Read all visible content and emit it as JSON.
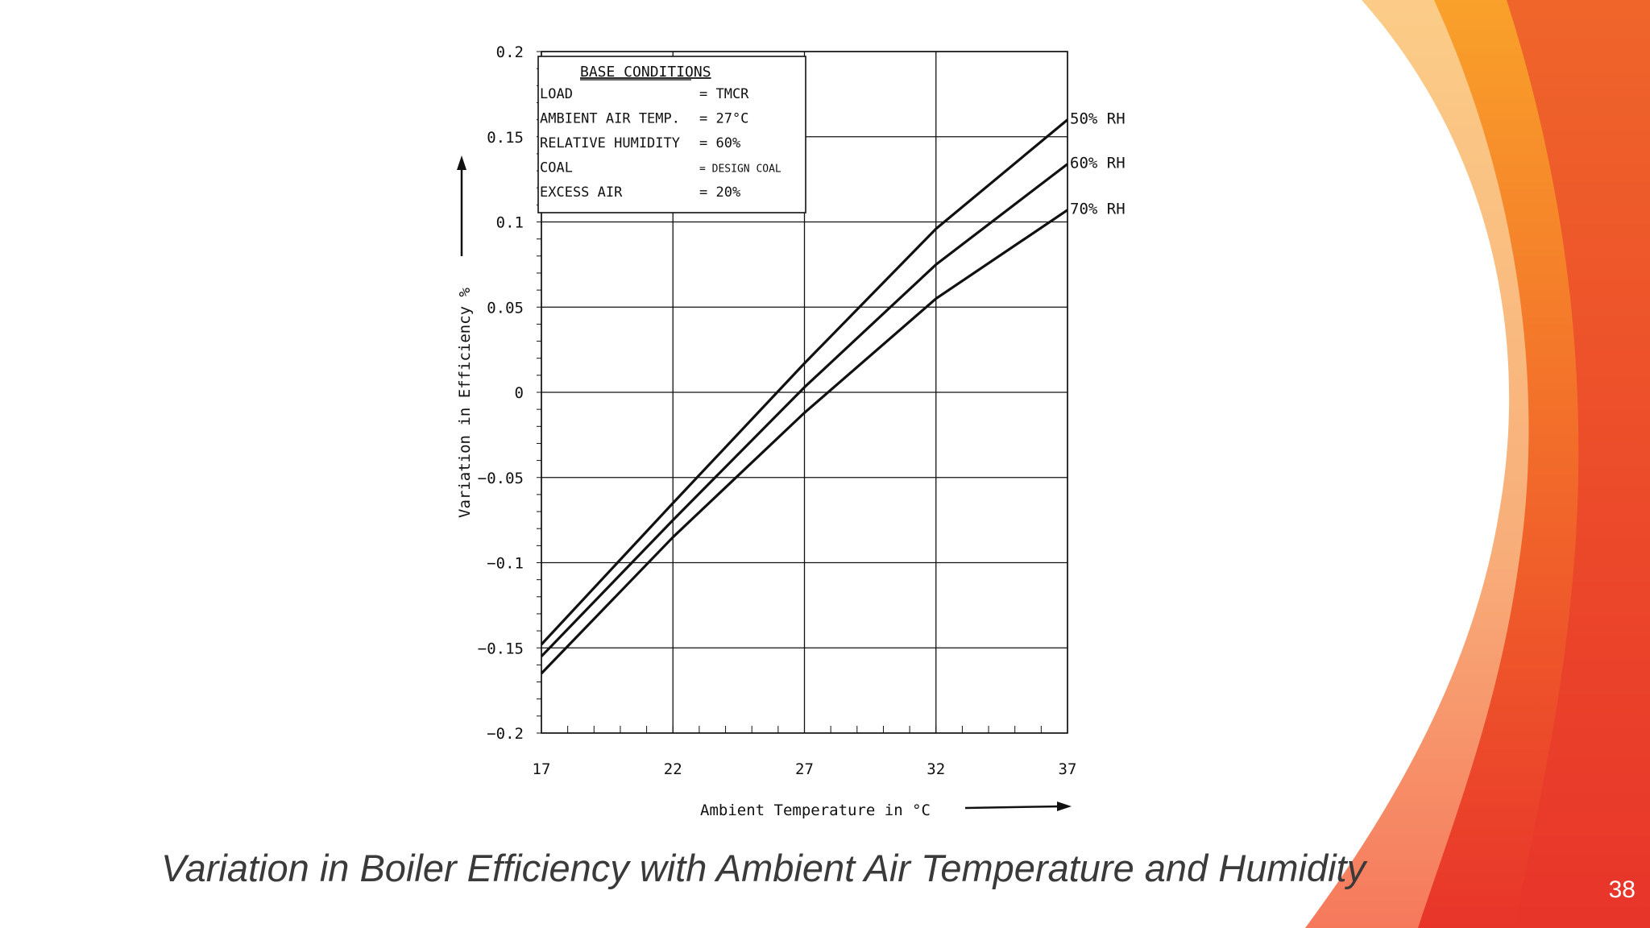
{
  "slide": {
    "caption": "Variation in Boiler Efficiency with Ambient Air Temperature and Humidity",
    "page_number": "38",
    "colors": {
      "accent_orange": "#f7931e",
      "accent_red": "#e8352a",
      "accent_light": "#fbc77a",
      "chart_ink": "#111111"
    }
  },
  "chart_data": {
    "type": "line",
    "title": "",
    "xlabel": "Ambient Temperature in °C",
    "ylabel": "Variation in Efficiency %",
    "xlim": [
      17,
      37
    ],
    "ylim": [
      -0.2,
      0.2
    ],
    "x_ticks": [
      17,
      22,
      27,
      32,
      37
    ],
    "x_tick_labels": [
      "17",
      "22",
      "27",
      "32",
      "37"
    ],
    "y_ticks": [
      -0.2,
      -0.15,
      -0.1,
      -0.05,
      0,
      0.05,
      0.1,
      0.15,
      0.2
    ],
    "y_tick_labels": [
      "−0.2",
      "−0.15",
      "−0.1",
      "−0.05",
      "0",
      "0.05",
      "0.1",
      "0.15",
      "0.2"
    ],
    "grid": true,
    "legend_box": {
      "title": "BASE CONDITIONS",
      "rows": [
        {
          "key": "LOAD",
          "value": "= TMCR"
        },
        {
          "key": "AMBIENT AIR TEMP.",
          "value": "= 27°C"
        },
        {
          "key": "RELATIVE HUMIDITY",
          "value": "= 60%"
        },
        {
          "key": "COAL",
          "value": "= DESIGN COAL"
        },
        {
          "key": "EXCESS AIR",
          "value": "= 20%"
        }
      ],
      "placement": "top-left"
    },
    "series": [
      {
        "name": "50% RH",
        "x": [
          17,
          22,
          27,
          32,
          37
        ],
        "y": [
          -0.148,
          -0.065,
          0.017,
          0.096,
          0.16
        ]
      },
      {
        "name": "60% RH",
        "x": [
          17,
          22,
          27,
          32,
          37
        ],
        "y": [
          -0.155,
          -0.075,
          0.003,
          0.075,
          0.134
        ]
      },
      {
        "name": "70% RH",
        "x": [
          17,
          22,
          27,
          32,
          37
        ],
        "y": [
          -0.165,
          -0.085,
          -0.012,
          0.055,
          0.107
        ]
      }
    ]
  }
}
